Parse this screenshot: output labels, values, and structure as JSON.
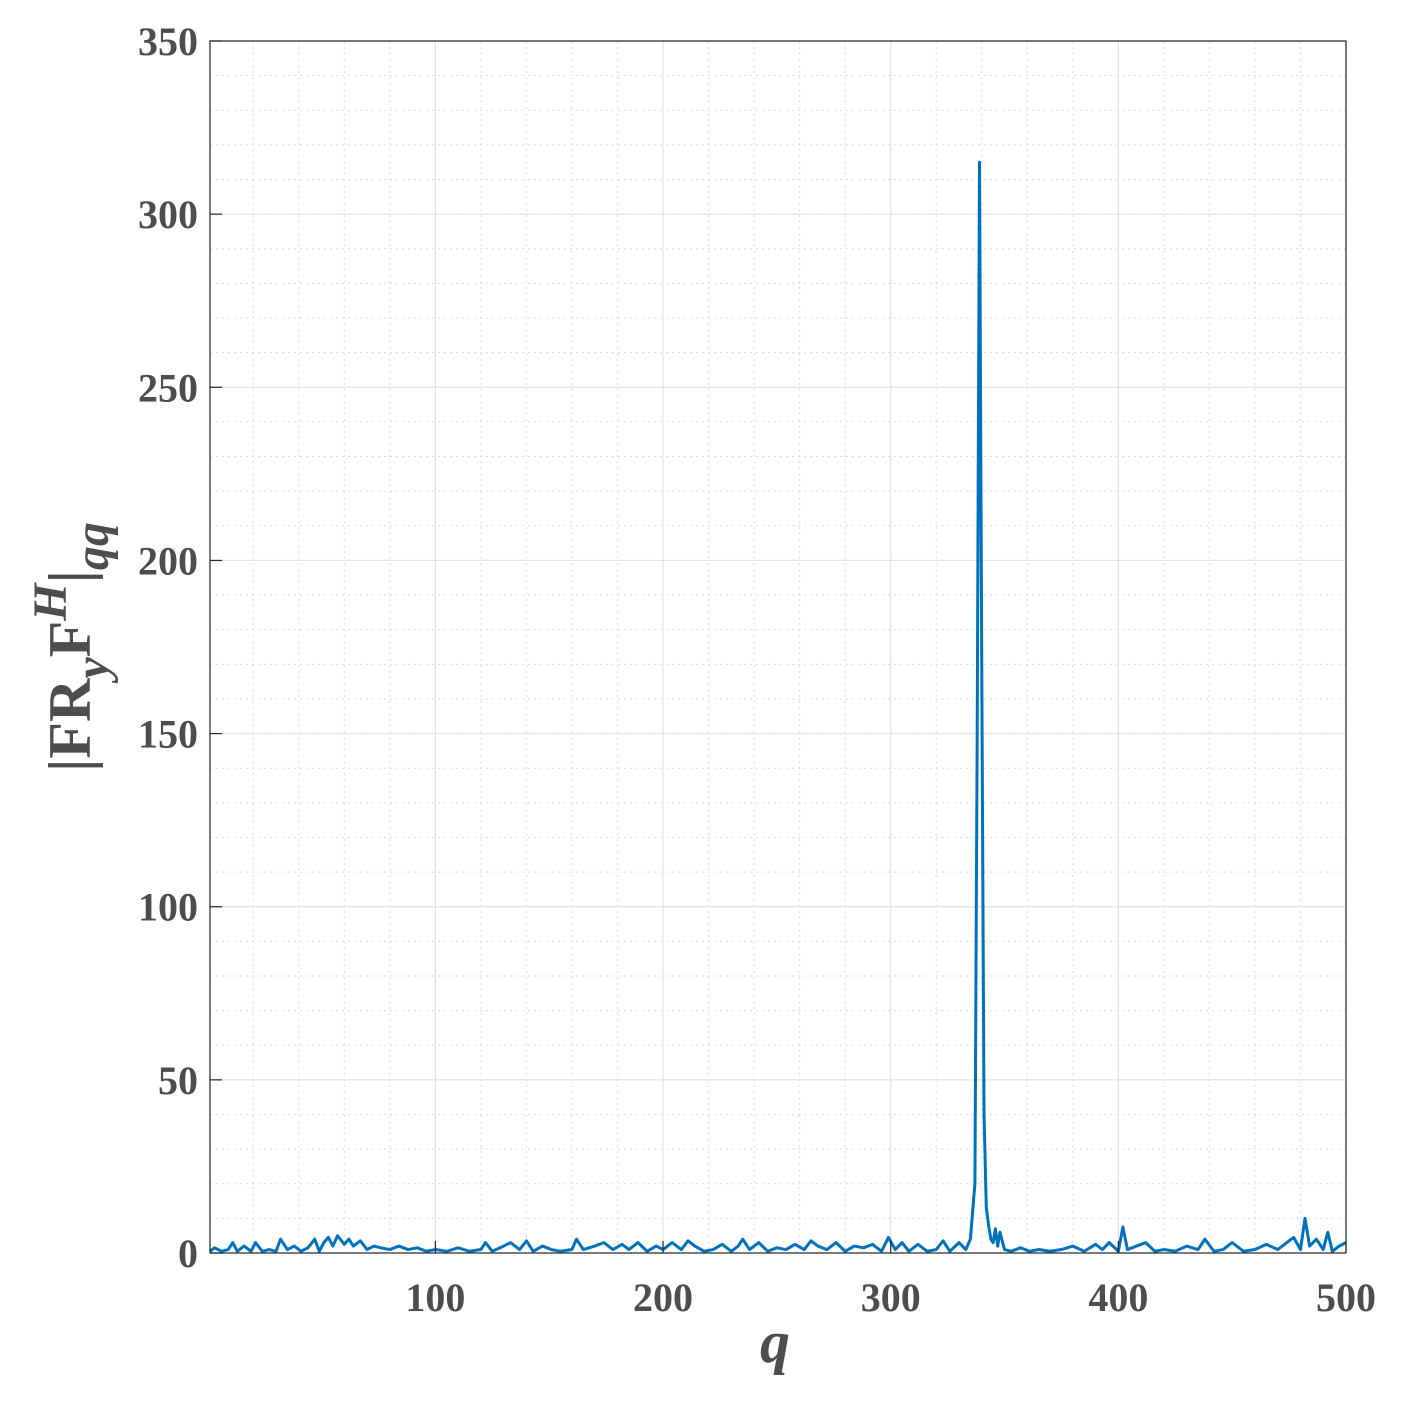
{
  "chart_data": {
    "type": "line",
    "xlabel": "q",
    "ylabel_parts": [
      "|FR",
      "y",
      "F",
      "H",
      "|",
      "qq"
    ],
    "xlim": [
      1,
      500
    ],
    "xticks": [
      100,
      200,
      300,
      400,
      500
    ],
    "ylim": [
      0,
      350
    ],
    "yticks": [
      0,
      50,
      100,
      150,
      200,
      250,
      300,
      350
    ],
    "grid": true,
    "minor_grid": true,
    "xminor_step": 20,
    "yminor_step": 10,
    "series": [
      {
        "color": "#0072bd",
        "x": [
          1,
          3,
          6,
          9,
          11,
          13,
          16,
          19,
          21,
          24,
          27,
          30,
          32,
          35,
          38,
          41,
          44,
          47,
          49,
          51,
          53,
          55,
          57,
          60,
          62,
          64,
          67,
          70,
          73,
          76,
          80,
          84,
          88,
          92,
          96,
          100,
          105,
          110,
          115,
          120,
          122,
          125,
          130,
          133,
          137,
          140,
          143,
          147,
          151,
          155,
          160,
          162,
          165,
          170,
          174,
          178,
          182,
          185,
          189,
          193,
          197,
          200,
          204,
          208,
          211,
          214,
          218,
          222,
          226,
          230,
          233,
          235,
          238,
          242,
          246,
          250,
          254,
          258,
          262,
          265,
          268,
          272,
          276,
          280,
          284,
          288,
          292,
          296,
          299,
          302,
          305,
          308,
          312,
          316,
          320,
          323,
          326,
          330,
          333,
          335,
          337,
          338,
          339,
          340,
          341,
          342,
          343,
          344,
          345,
          346,
          347,
          348,
          350,
          353,
          357,
          361,
          365,
          370,
          375,
          380,
          385,
          390,
          393,
          396,
          400,
          402,
          404,
          408,
          412,
          416,
          420,
          425,
          430,
          435,
          438,
          442,
          446,
          450,
          455,
          460,
          465,
          470,
          474,
          477,
          480,
          482,
          484,
          487,
          490,
          492,
          494,
          497,
          500
        ],
        "values": [
          0.5,
          1.5,
          0.5,
          1,
          3,
          0.5,
          2,
          0.5,
          3,
          0.5,
          1,
          0.5,
          4,
          1,
          2,
          0.5,
          1.5,
          4,
          0.5,
          3,
          4.5,
          2,
          5,
          2.5,
          4,
          2,
          3.5,
          1,
          2,
          1.5,
          1,
          2,
          1,
          1.5,
          0.5,
          1,
          0.5,
          1.5,
          0.5,
          1,
          3,
          0.5,
          2,
          3,
          1,
          3.5,
          0.5,
          2,
          1,
          0.5,
          1,
          4,
          1,
          2,
          3,
          1,
          2.5,
          1,
          3,
          0.5,
          2,
          1,
          3,
          1,
          3.5,
          2,
          0.5,
          1,
          2.5,
          0.5,
          2,
          4,
          1,
          3,
          0.5,
          1.5,
          1,
          2.5,
          1,
          3.5,
          2,
          1,
          3,
          0.5,
          2,
          1.5,
          2.5,
          0.5,
          4.5,
          1,
          3,
          0.5,
          2.5,
          0.5,
          1,
          3.5,
          0.5,
          3,
          1,
          4,
          20,
          150,
          315,
          170,
          40,
          13,
          8,
          4,
          3,
          7,
          2,
          6,
          1,
          0.5,
          1.5,
          0.5,
          1,
          0.5,
          1,
          2,
          0.5,
          2.5,
          1,
          3,
          0.5,
          7.5,
          1,
          2,
          3,
          0.5,
          1,
          0.5,
          2,
          1,
          4,
          0.5,
          1,
          3,
          0.5,
          1,
          2.5,
          1,
          3,
          4.5,
          1,
          10,
          2,
          4,
          1,
          6,
          0.5,
          2,
          3
        ]
      }
    ]
  }
}
